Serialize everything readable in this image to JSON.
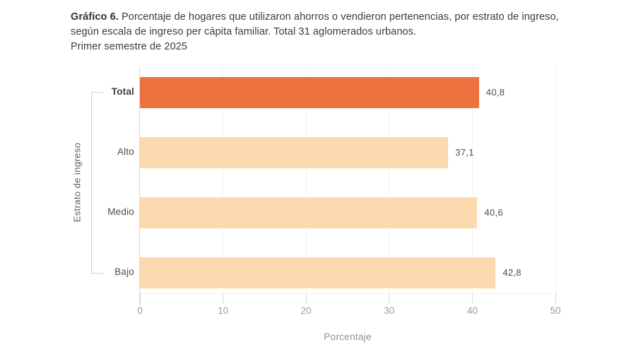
{
  "header": {
    "title_bold": "Gráfico 6.",
    "title_rest": " Porcentaje de hogares que utilizaron ahorros o vendieron pertenencias, por estrato de ingreso, según escala de ingreso per cápita familiar. Total 31 aglomerados urbanos.",
    "subtitle": "Primer semestre de 2025"
  },
  "chart_data": {
    "type": "bar",
    "orientation": "horizontal",
    "title": "Gráfico 6. Porcentaje de hogares que utilizaron ahorros o vendieron pertenencias, por estrato de ingreso, según escala de ingreso per cápita familiar. Total 31 aglomerados urbanos. Primer semestre de 2025",
    "categories": [
      "Total",
      "Alto",
      "Medio",
      "Bajo"
    ],
    "values": [
      40.8,
      37.1,
      40.6,
      42.8
    ],
    "value_labels": [
      "40,8",
      "37,1",
      "40,6",
      "42,8"
    ],
    "xlabel": "Porcentaje",
    "ylabel": "Estrato de ingreso",
    "xlim": [
      0,
      50
    ],
    "xticks": [
      0,
      10,
      20,
      30,
      40,
      50
    ],
    "xtick_labels": [
      "0",
      "10",
      "20",
      "30",
      "40",
      "50"
    ],
    "grid": true,
    "legend": "none",
    "highlight_category": "Total",
    "bar_colors": [
      "#ED7240",
      "#FCD9AE",
      "#FCD9AE",
      "#FCD9AE"
    ]
  },
  "colors": {
    "highlight_bar": "#ED7240",
    "regular_bar": "#FCD9AE",
    "axis_line": "#d9d9d9",
    "gridline": "#f2f2f2",
    "tick_text": "#9b9b9b",
    "label_text": "#4d4d4d",
    "background": "#ffffff"
  }
}
